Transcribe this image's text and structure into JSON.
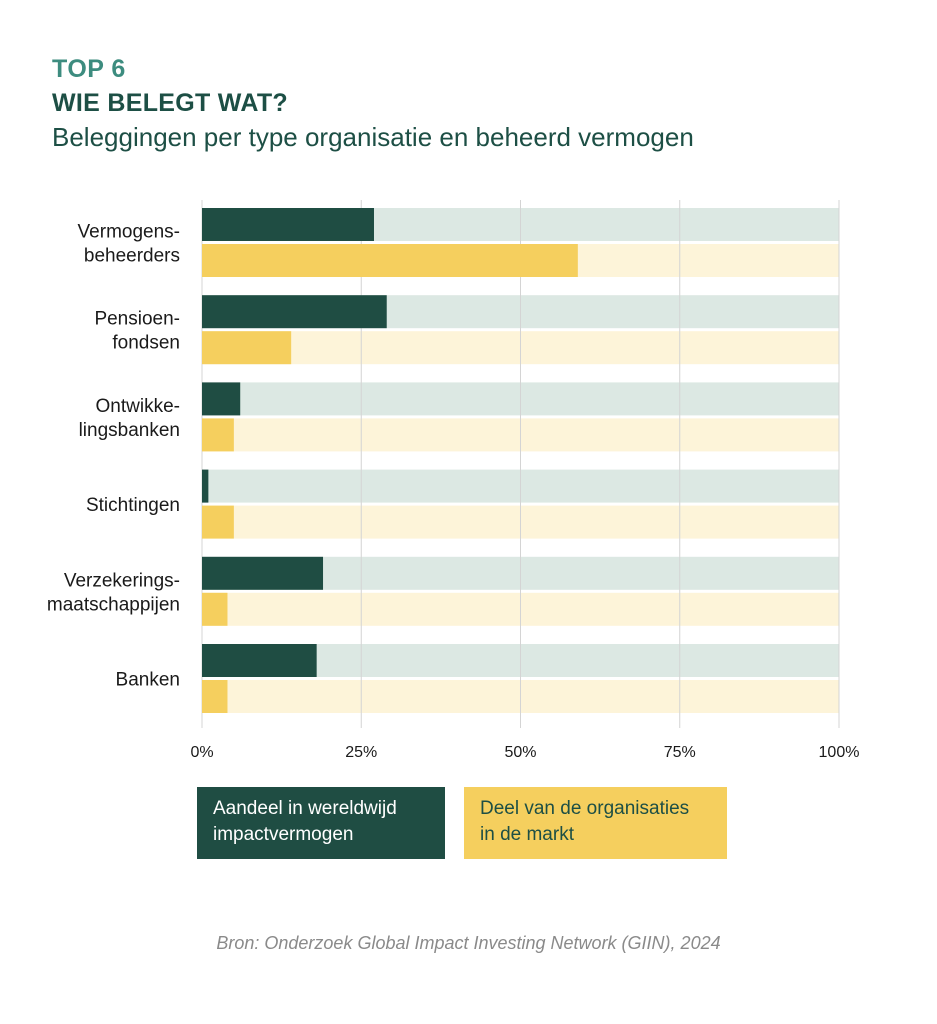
{
  "header": {
    "kicker": "TOP 6",
    "title": "WIE BELEGT WAT?",
    "subtitle": "Beleggingen per type organisatie en beheerd vermogen"
  },
  "chart_data": {
    "type": "bar",
    "orientation": "horizontal",
    "categories": [
      [
        "Vermogens-",
        "beheerders"
      ],
      [
        "Pensioen-",
        "fondsen"
      ],
      [
        "Ontwikke-",
        "lingsbanken"
      ],
      [
        "Stichtingen"
      ],
      [
        "Verzekerings-",
        "maatschappijen"
      ],
      [
        "Banken"
      ]
    ],
    "series": [
      {
        "name": "Aandeel in wereldwijd impactvermogen",
        "values": [
          27,
          29,
          6,
          1,
          19,
          18
        ],
        "color": "#1f4d43",
        "track_color": "#dce8e3"
      },
      {
        "name": "Deel van de organisaties in de markt",
        "values": [
          59,
          14,
          5,
          5,
          4,
          4
        ],
        "color": "#f5cf5e",
        "track_color": "#fdf4d9"
      }
    ],
    "xlim": [
      0,
      100
    ],
    "xticks": [
      "0%",
      "25%",
      "50%",
      "75%",
      "100%"
    ],
    "grid": true,
    "legend_position": "bottom"
  },
  "legend": {
    "dark_line1": "Aandeel in wereldwijd",
    "dark_line2": "impactvermogen",
    "yellow_line1": "Deel van de organisaties",
    "yellow_line2": "in de markt"
  },
  "source": "Bron: Onderzoek Global Impact Investing Network (GIIN), 2024"
}
